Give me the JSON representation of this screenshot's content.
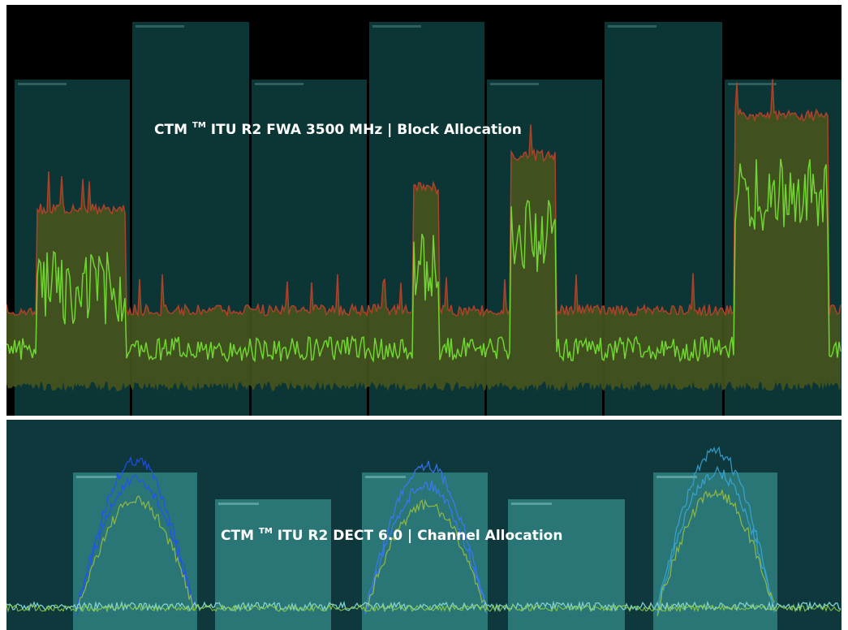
{
  "panels": [
    {
      "title": {
        "brand": "CTM",
        "mark": "TM",
        "text": "ITU R2 FWA 3500 MHz | Block Allocation"
      }
    },
    {
      "title": {
        "brand": "CTM",
        "mark": "TM",
        "text": "ITU R2 DECT 6.0 | Channel Allocation"
      }
    }
  ]
}
